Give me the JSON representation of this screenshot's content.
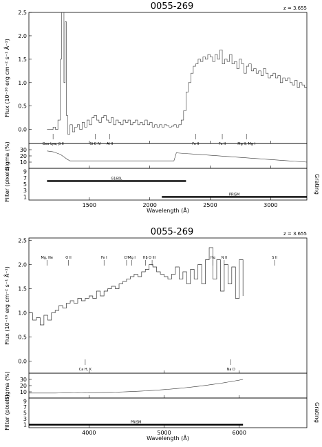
{
  "panels": [
    {
      "title": "0055-269",
      "redshift": "z = 3.655",
      "xlabel": "Wavelength (Å)",
      "ylabel_flux": "Flux (10⁻¹⁶ erg cm⁻² s⁻¹ Å⁻¹)",
      "ylabel_sigma": "Sigma (%)",
      "ylabel_filter": "Filter (pixels)",
      "ylabel_grating": "Grating",
      "xlim": [
        1000,
        3300
      ],
      "flux_ylim": [
        -0.3,
        2.5
      ],
      "flux_yticks": [
        "0.0",
        "0.5",
        "1.0",
        "1.5",
        "2.0",
        "2.5"
      ],
      "sigma_yticks": [
        "10",
        "20",
        "30"
      ],
      "filter_yticks": [
        "1",
        "3",
        "5",
        "7",
        "9"
      ],
      "xticks": [
        "1500",
        "2000",
        "2500",
        "3000"
      ],
      "xtick_values": [
        1500,
        2000,
        2500,
        3000
      ],
      "lines": [
        {
          "label": "Geo Lyα, β II",
          "x": 1200
        },
        {
          "label": "Si C IV",
          "x": 1550
        },
        {
          "label": "Al II",
          "x": 1670
        },
        {
          "label": "Fe II",
          "x": 2380
        },
        {
          "label": "Fe II",
          "x": 2600
        },
        {
          "label": "Mg II, Mg I",
          "x": 2800
        }
      ],
      "gratings": [
        {
          "label": "G160L",
          "x_range": [
            1150,
            2300
          ],
          "level": 6.0
        },
        {
          "label": "PRISM",
          "x_range": [
            2100,
            3300
          ],
          "level": 1.0
        }
      ]
    },
    {
      "title": "0055-269",
      "redshift": "z = 3.655",
      "xlabel": "Wavelength (Å)",
      "ylabel_flux": "Flux (10⁻¹⁶ erg cm⁻² s⁻¹ Å⁻¹)",
      "ylabel_sigma": "Sigma (%)",
      "ylabel_filter": "Filter (pixels)",
      "ylabel_grating": "Grating",
      "xlim": [
        3200,
        6900
      ],
      "flux_ylim": [
        -0.25,
        2.55
      ],
      "flux_yticks": [
        "0.0",
        "0.5",
        "1.0",
        "1.5",
        "2.0",
        "2.5"
      ],
      "sigma_yticks": [
        "10",
        "20",
        "30"
      ],
      "filter_yticks": [
        "1",
        "3",
        "5",
        "7",
        "9"
      ],
      "xticks": [
        "4000",
        "5000",
        "6000"
      ],
      "xtick_values": [
        4000,
        5000,
        6000
      ],
      "lines_top": [
        {
          "label": "Mg, Ne",
          "x": 3440
        },
        {
          "label": "O II",
          "x": 3727
        },
        {
          "label": "Fe I",
          "x": 4200
        },
        {
          "label": "CH",
          "x": 4500
        },
        {
          "label": "Mg I",
          "x": 4570
        },
        {
          "label": "Hβ",
          "x": 4750
        },
        {
          "label": "O III",
          "x": 4840
        },
        {
          "label": "Hα",
          "x": 5650
        },
        {
          "label": "N II",
          "x": 5800
        },
        {
          "label": "S II",
          "x": 6470
        }
      ],
      "lines_bottom": [
        {
          "label": "Ca H, K",
          "x": 3950
        },
        {
          "label": "Na D",
          "x": 5890
        }
      ],
      "gratings": [
        {
          "label": "PRISM",
          "x_range": [
            3200,
            6050
          ],
          "level": 1.0
        }
      ]
    }
  ],
  "chart_data": [
    {
      "type": "line",
      "title": "0055-269",
      "subtitle": "z = 3.655",
      "xlabel": "Wavelength (Å)",
      "ylabel": "Flux (10⁻¹⁶ erg cm⁻² s⁻¹ Å⁻¹)",
      "xlim": [
        1000,
        3300
      ],
      "ylim": [
        -0.3,
        2.5
      ],
      "series": [
        {
          "x": [
            1150,
            1200,
            1220,
            1240,
            1260,
            1270,
            1280,
            1290,
            1300,
            1310,
            1320,
            1340,
            1360,
            1380,
            1400,
            1420,
            1440,
            1460,
            1480,
            1500,
            1520,
            1540,
            1560,
            1580,
            1600,
            1620,
            1640,
            1660,
            1680,
            1700,
            1720,
            1740,
            1760,
            1780,
            1800,
            1820,
            1840,
            1860,
            1880,
            1900,
            1920,
            1940,
            1960,
            1980,
            2000,
            2020,
            2040,
            2060,
            2080,
            2100,
            2120,
            2140,
            2160,
            2180,
            2200,
            2220,
            2240,
            2260,
            2280,
            2300,
            2320,
            2340,
            2360,
            2380,
            2400,
            2420,
            2440,
            2460,
            2480,
            2500,
            2520,
            2540,
            2560,
            2580,
            2600,
            2620,
            2640,
            2660,
            2680,
            2700,
            2720,
            2740,
            2760,
            2780,
            2800,
            2820,
            2840,
            2860,
            2880,
            2900,
            2920,
            2940,
            2960,
            2980,
            3000,
            3020,
            3040,
            3060,
            3080,
            3100,
            3120,
            3140,
            3160,
            3180,
            3200,
            3220,
            3240,
            3260,
            3280,
            3300
          ],
          "y": [
            0.0,
            0.05,
            0.0,
            0.2,
            1.5,
            2.5,
            2.5,
            1.0,
            2.3,
            0.3,
            -0.1,
            0.1,
            -0.05,
            0.05,
            0.1,
            0.0,
            0.15,
            0.05,
            0.2,
            0.1,
            0.25,
            0.3,
            0.2,
            0.15,
            0.25,
            0.3,
            0.2,
            0.15,
            0.25,
            0.1,
            0.2,
            0.15,
            0.1,
            0.2,
            0.15,
            0.2,
            0.1,
            0.15,
            0.2,
            0.1,
            0.15,
            0.1,
            0.2,
            0.1,
            0.15,
            0.05,
            0.1,
            0.05,
            0.1,
            0.05,
            0.1,
            0.08,
            0.05,
            0.07,
            0.1,
            0.05,
            0.1,
            0.2,
            0.4,
            0.8,
            1.0,
            1.2,
            1.35,
            1.4,
            1.5,
            1.45,
            1.55,
            1.5,
            1.6,
            1.55,
            1.45,
            1.6,
            1.5,
            1.7,
            1.4,
            1.5,
            1.45,
            1.6,
            1.4,
            1.45,
            1.3,
            1.5,
            1.4,
            1.2,
            1.35,
            1.4,
            1.25,
            1.3,
            1.2,
            1.25,
            1.15,
            1.3,
            1.2,
            1.1,
            1.15,
            1.2,
            1.1,
            1.15,
            1.0,
            1.1,
            1.05,
            1.1,
            1.0,
            0.95,
            1.05,
            0.9,
            1.0,
            0.95,
            0.9,
            0.9
          ]
        }
      ]
    },
    {
      "type": "line",
      "title": "0055-269",
      "subtitle": "z = 3.655",
      "xlabel": "Wavelength (Å)",
      "ylabel": "Flux (10⁻¹⁶ erg cm⁻² s⁻¹ Å⁻¹)",
      "xlim": [
        3200,
        6900
      ],
      "ylim": [
        -0.25,
        2.55
      ],
      "series": [
        {
          "x": [
            3200,
            3250,
            3300,
            3350,
            3400,
            3450,
            3500,
            3550,
            3600,
            3650,
            3700,
            3750,
            3800,
            3850,
            3900,
            3950,
            4000,
            4050,
            4100,
            4150,
            4200,
            4250,
            4300,
            4350,
            4400,
            4450,
            4500,
            4550,
            4600,
            4650,
            4700,
            4750,
            4800,
            4850,
            4900,
            4950,
            5000,
            5050,
            5100,
            5150,
            5200,
            5250,
            5300,
            5350,
            5400,
            5450,
            5500,
            5550,
            5600,
            5650,
            5700,
            5750,
            5800,
            5850,
            5900,
            5950,
            6000,
            6050
          ],
          "y": [
            1.0,
            0.85,
            0.9,
            0.75,
            0.95,
            0.85,
            1.0,
            1.05,
            1.15,
            1.1,
            1.2,
            1.25,
            1.2,
            1.3,
            1.25,
            1.3,
            1.35,
            1.3,
            1.45,
            1.35,
            1.45,
            1.5,
            1.55,
            1.5,
            1.6,
            1.65,
            1.7,
            1.75,
            1.8,
            1.75,
            1.85,
            1.9,
            2.0,
            1.95,
            1.85,
            1.8,
            1.75,
            1.7,
            1.8,
            1.95,
            1.7,
            1.85,
            1.6,
            1.9,
            1.7,
            2.0,
            1.6,
            2.1,
            2.35,
            1.7,
            2.1,
            1.45,
            2.0,
            1.6,
            1.95,
            1.3,
            2.1,
            1.35
          ]
        }
      ]
    }
  ]
}
